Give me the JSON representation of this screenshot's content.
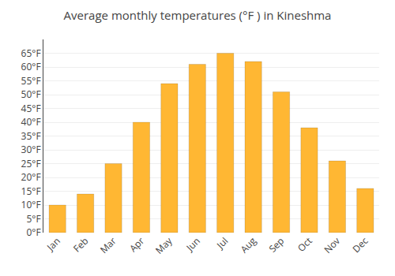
{
  "chart_data": {
    "type": "bar",
    "title": "Average monthly temperatures (°F ) in Kineshma",
    "categories": [
      "Jan",
      "Feb",
      "Mar",
      "Apr",
      "May",
      "Jun",
      "Jul",
      "Aug",
      "Sep",
      "Oct",
      "Nov",
      "Dec"
    ],
    "values": [
      10,
      14,
      25,
      40,
      54,
      61,
      65,
      62,
      51,
      38,
      26,
      16
    ],
    "color": "#FFB733",
    "ylim": [
      0,
      70
    ],
    "yticks": [
      {
        "value": 0,
        "label": "0°F"
      },
      {
        "value": 5,
        "label": "5°F"
      },
      {
        "value": 10,
        "label": "10°F"
      },
      {
        "value": 15,
        "label": "15°F"
      },
      {
        "value": 20,
        "label": "20°F"
      },
      {
        "value": 25,
        "label": "25°F"
      },
      {
        "value": 30,
        "label": "30°F"
      },
      {
        "value": 35,
        "label": "35°F"
      },
      {
        "value": 40,
        "label": "40°F"
      },
      {
        "value": 45,
        "label": "45°F"
      },
      {
        "value": 50,
        "label": "50°F"
      },
      {
        "value": 55,
        "label": "55°F"
      },
      {
        "value": 60,
        "label": "60°F"
      },
      {
        "value": 65,
        "label": "65°F"
      }
    ],
    "grid": true
  }
}
